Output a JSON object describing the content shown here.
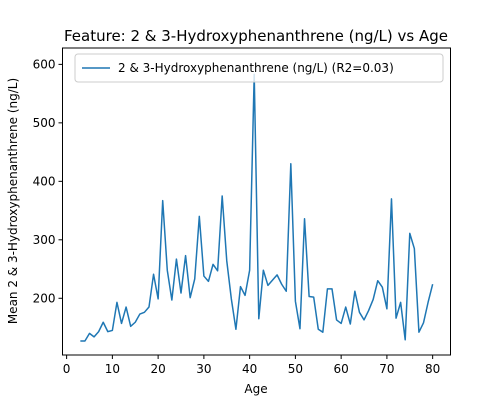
{
  "chart_data": {
    "type": "line",
    "title": "Feature: 2 & 3-Hydroxyphenanthrene (ng/L) vs Age",
    "xlabel": "Age",
    "ylabel": "Mean 2 & 3-Hydroxyphenanthrene (ng/L)",
    "xlim": [
      -0.9,
      83.9
    ],
    "ylim": [
      103,
      628
    ],
    "xticks": [
      0,
      10,
      20,
      30,
      40,
      50,
      60,
      70,
      80
    ],
    "yticks": [
      200,
      300,
      400,
      500,
      600
    ],
    "grid": false,
    "legend_position": "top-right",
    "series": [
      {
        "name": "2 & 3-Hydroxyphenanthrene (ng/L) (R2=0.03)",
        "color": "#1f77b4",
        "x": [
          3,
          4,
          5,
          6,
          7,
          8,
          9,
          10,
          11,
          12,
          13,
          14,
          15,
          16,
          17,
          18,
          19,
          20,
          21,
          22,
          23,
          24,
          25,
          26,
          27,
          28,
          29,
          30,
          31,
          32,
          33,
          34,
          35,
          36,
          37,
          38,
          39,
          40,
          41,
          42,
          43,
          44,
          45,
          46,
          47,
          48,
          49,
          50,
          51,
          52,
          53,
          54,
          55,
          56,
          57,
          58,
          59,
          60,
          61,
          62,
          63,
          64,
          65,
          66,
          67,
          68,
          69,
          70,
          71,
          72,
          73,
          74,
          75,
          76,
          77,
          78,
          79,
          80
        ],
        "values": [
          127,
          127,
          140,
          134,
          143,
          159,
          143,
          145,
          193,
          157,
          185,
          152,
          159,
          173,
          176,
          185,
          241,
          199,
          367,
          248,
          197,
          267,
          209,
          273,
          201,
          233,
          340,
          238,
          229,
          258,
          247,
          375,
          264,
          199,
          147,
          220,
          205,
          248,
          583,
          165,
          248,
          222,
          231,
          240,
          224,
          212,
          430,
          195,
          148,
          336,
          203,
          202,
          147,
          142,
          216,
          216,
          163,
          157,
          185,
          156,
          212,
          176,
          163,
          179,
          198,
          230,
          219,
          182,
          370,
          166,
          193,
          129,
          311,
          285,
          142,
          158,
          193,
          224
        ]
      }
    ]
  }
}
